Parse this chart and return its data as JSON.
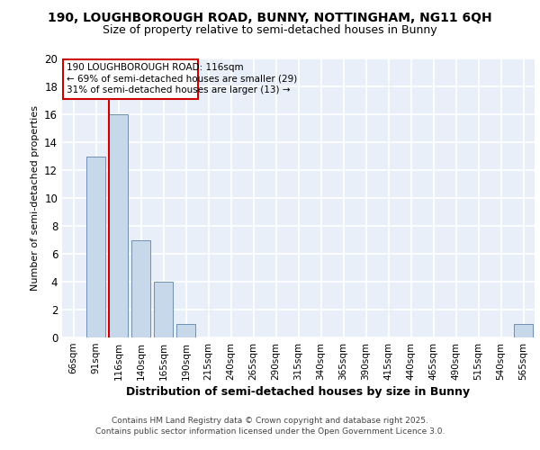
{
  "title1": "190, LOUGHBOROUGH ROAD, BUNNY, NOTTINGHAM, NG11 6QH",
  "title2": "Size of property relative to semi-detached houses in Bunny",
  "xlabel": "Distribution of semi-detached houses by size in Bunny",
  "ylabel": "Number of semi-detached properties",
  "categories": [
    "66sqm",
    "91sqm",
    "116sqm",
    "140sqm",
    "165sqm",
    "190sqm",
    "215sqm",
    "240sqm",
    "265sqm",
    "290sqm",
    "315sqm",
    "340sqm",
    "365sqm",
    "390sqm",
    "415sqm",
    "440sqm",
    "465sqm",
    "490sqm",
    "515sqm",
    "540sqm",
    "565sqm"
  ],
  "values": [
    0,
    13,
    16,
    7,
    4,
    1,
    0,
    0,
    0,
    0,
    0,
    0,
    0,
    0,
    0,
    0,
    0,
    0,
    0,
    0,
    1
  ],
  "bar_color": "#c8d8eb",
  "bar_edge_color": "#7090b0",
  "subject_index": 2,
  "subject_label": "190 LOUGHBOROUGH ROAD: 116sqm",
  "annotation_line1": "← 69% of semi-detached houses are smaller (29)",
  "annotation_line2": "31% of semi-detached houses are larger (13) →",
  "subject_line_color": "#cc0000",
  "annotation_box_color": "#cc0000",
  "ylim": [
    0,
    20
  ],
  "yticks": [
    0,
    2,
    4,
    6,
    8,
    10,
    12,
    14,
    16,
    18,
    20
  ],
  "background_color": "#e8eff8",
  "grid_color": "#ffffff",
  "title1_fontsize": 10,
  "title2_fontsize": 9,
  "xlabel_fontsize": 9,
  "ylabel_fontsize": 8,
  "footer_line1": "Contains HM Land Registry data © Crown copyright and database right 2025.",
  "footer_line2": "Contains public sector information licensed under the Open Government Licence 3.0."
}
